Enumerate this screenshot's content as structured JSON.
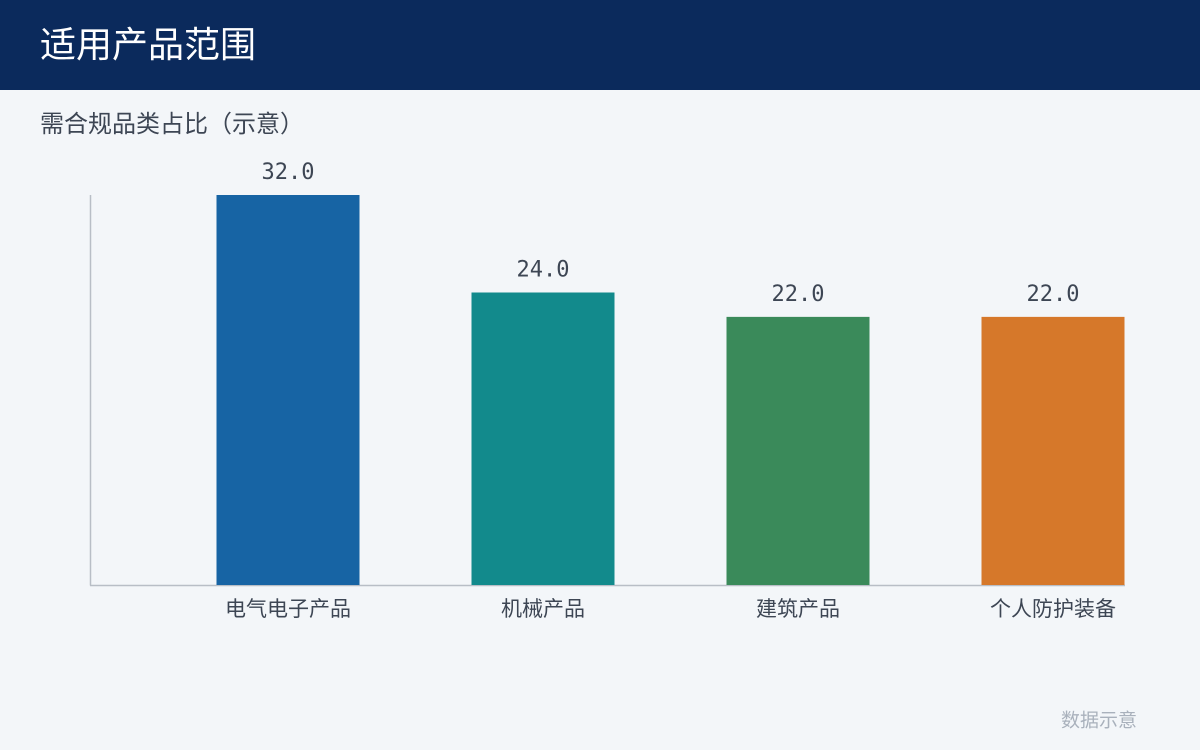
{
  "header": {
    "title": "适用产品范围"
  },
  "chart_data": {
    "type": "bar",
    "title": "需合规品类占比（示意）",
    "categories": [
      "电气电子产品",
      "机械产品",
      "建筑产品",
      "个人防护装备"
    ],
    "values": [
      32,
      24,
      22,
      22
    ],
    "value_labels": [
      "32.0",
      "24.0",
      "22.0",
      "22.0"
    ],
    "colors": [
      "#1764a4",
      "#128a8c",
      "#3a8a5a",
      "#d6782a"
    ]
  },
  "footer": {
    "note": "数据示意"
  }
}
